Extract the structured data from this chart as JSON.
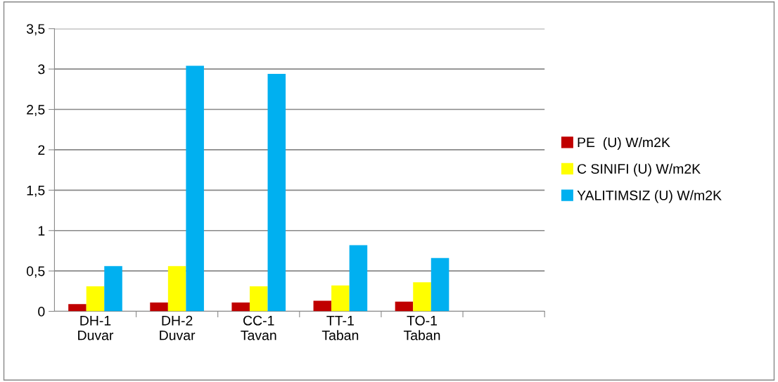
{
  "chart_data": {
    "type": "bar",
    "categories": [
      "DH-1\nDuvar",
      "DH-2\nDuvar",
      "CC-1\nTavan",
      "TT-1\nTaban",
      "TO-1\nTaban",
      null
    ],
    "series": [
      {
        "name": "PE  (U) W/m2K",
        "color": "#c00000",
        "values": [
          0.09,
          0.11,
          0.11,
          0.13,
          0.12,
          null
        ]
      },
      {
        "name": "C SINIFI (U) W/m2K",
        "color": "#ffff00",
        "values": [
          0.31,
          0.56,
          0.31,
          0.32,
          0.36,
          null
        ]
      },
      {
        "name": "YALITIMSIZ (U) W/m2K",
        "color": "#00b0f0",
        "values": [
          0.56,
          3.04,
          2.94,
          0.82,
          0.66,
          null
        ]
      }
    ],
    "ylim": [
      0,
      3.5
    ],
    "yticks": [
      {
        "value": 0,
        "label": "0"
      },
      {
        "value": 0.5,
        "label": "0,5"
      },
      {
        "value": 1,
        "label": "1"
      },
      {
        "value": 1.5,
        "label": "1,5"
      },
      {
        "value": 2,
        "label": "2"
      },
      {
        "value": 2.5,
        "label": "2,5"
      },
      {
        "value": 3,
        "label": "3"
      },
      {
        "value": 3.5,
        "label": "3,5"
      }
    ],
    "grid": "y",
    "legend": "right"
  }
}
